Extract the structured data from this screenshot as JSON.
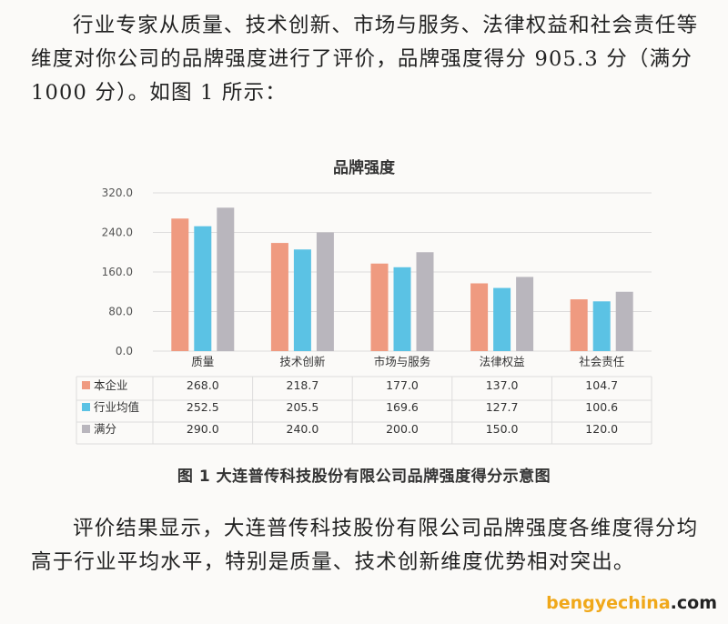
{
  "paragraph1": "行业专家从质量、技术创新、市场与服务、法律权益和社会责任等维度对你公司的品牌强度进行了评价，品牌强度得分 905.3 分（满分 1000 分）。如图 1 所示：",
  "paragraph2": "评价结果显示，大连普传科技股份有限公司品牌强度各维度得分均高于行业平均水平，特别是质量、技术创新维度优势相对突出。",
  "figure_caption": "图 1  大连普传科技股份有限公司品牌强度得分示意图",
  "watermark": {
    "name": "bengyechina",
    "suffix": ".com"
  },
  "chart_data": {
    "type": "bar",
    "title": "品牌强度",
    "categories": [
      "质量",
      "技术创新",
      "市场与服务",
      "法律权益",
      "社会责任"
    ],
    "y_ticks": [
      "320.0",
      "240.0",
      "160.0",
      "80.0",
      "0.0"
    ],
    "ylim": [
      0,
      320
    ],
    "grid": true,
    "legend": "table-below",
    "series": [
      {
        "name": "本企业",
        "color": "#ef9a80",
        "values": [
          268.0,
          218.7,
          177.0,
          137.0,
          104.7
        ],
        "labels": [
          "268.0",
          "218.7",
          "177.0",
          "137.0",
          "104.7"
        ]
      },
      {
        "name": "行业均值",
        "color": "#5bc2e4",
        "values": [
          252.5,
          205.5,
          169.6,
          127.7,
          100.6
        ],
        "labels": [
          "252.5",
          "205.5",
          "169.6",
          "127.7",
          "100.6"
        ]
      },
      {
        "name": "满分",
        "color": "#b9b6bd",
        "values": [
          290.0,
          240.0,
          200.0,
          150.0,
          120.0
        ],
        "labels": [
          "290.0",
          "240.0",
          "200.0",
          "150.0",
          "120.0"
        ]
      }
    ]
  }
}
